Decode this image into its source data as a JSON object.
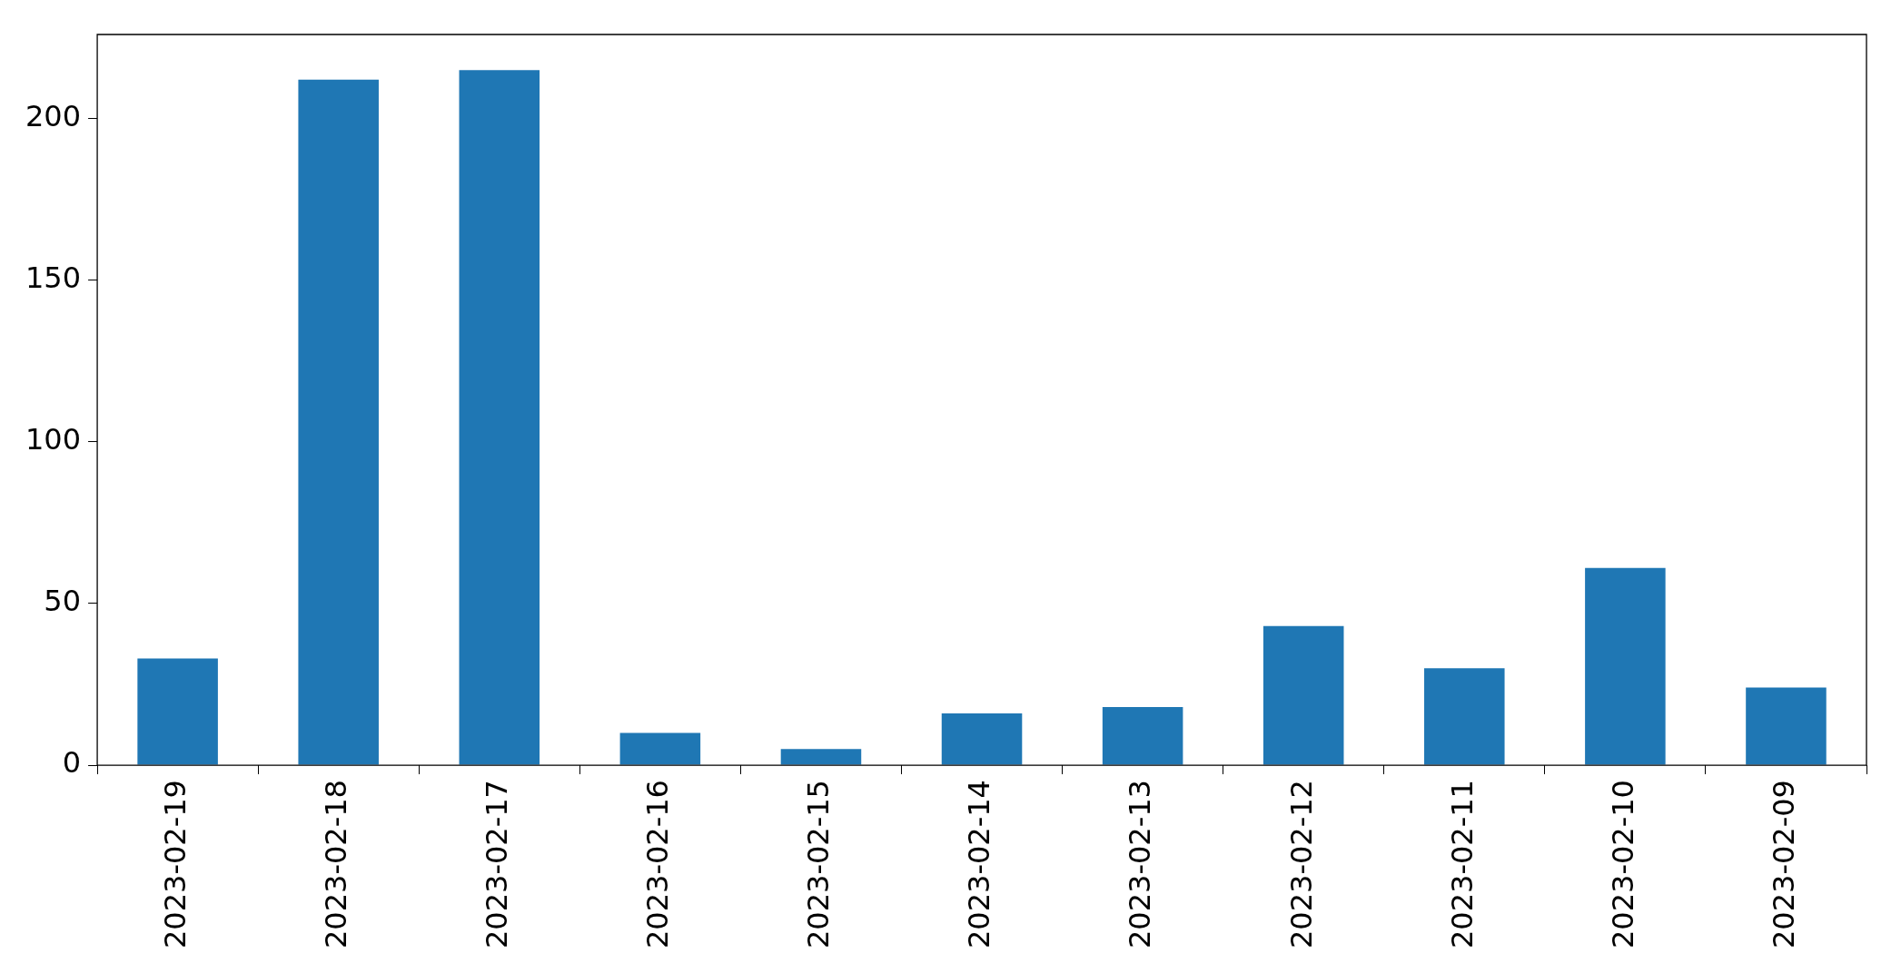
{
  "chart_data": {
    "type": "bar",
    "categories": [
      "2023-02-19",
      "2023-02-18",
      "2023-02-17",
      "2023-02-16",
      "2023-02-15",
      "2023-02-14",
      "2023-02-13",
      "2023-02-12",
      "2023-02-11",
      "2023-02-10",
      "2023-02-09"
    ],
    "values": [
      33,
      212,
      215,
      10,
      5,
      16,
      18,
      43,
      30,
      61,
      24
    ],
    "color": "#1f77b4",
    "ylim": [
      0,
      226
    ],
    "yticks": [
      0,
      50,
      100,
      150,
      200
    ],
    "grid": false,
    "legend": false
  }
}
